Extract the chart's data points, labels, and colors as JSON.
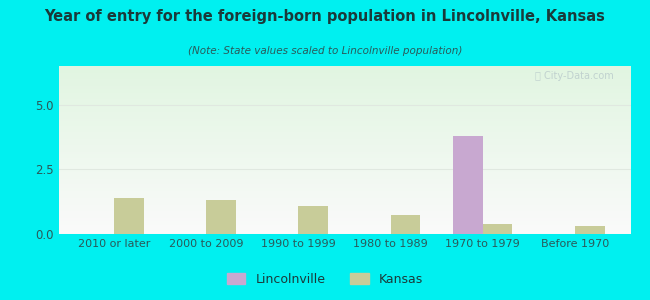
{
  "title": "Year of entry for the foreign-born population in Lincolnville, Kansas",
  "subtitle": "(Note: State values scaled to Lincolnville population)",
  "categories": [
    "2010 or later",
    "2000 to 2009",
    "1990 to 1999",
    "1980 to 1989",
    "1970 to 1979",
    "Before 1970"
  ],
  "lincolnville_values": [
    0,
    0,
    0,
    0,
    3.8,
    0
  ],
  "kansas_values": [
    1.4,
    1.3,
    1.1,
    0.75,
    0.38,
    0.3
  ],
  "lincolnville_color": "#c8a8d0",
  "kansas_color": "#c8cc99",
  "background_outer": "#00f0f0",
  "ylim": [
    0,
    6.5
  ],
  "yticks": [
    0,
    2.5,
    5
  ],
  "bar_width": 0.32,
  "legend_labels": [
    "Lincolnville",
    "Kansas"
  ],
  "title_color": "#1a3a3a",
  "subtitle_color": "#2a5a5a",
  "tick_color": "#2a5a5a",
  "grid_color": "#e0e8e0"
}
